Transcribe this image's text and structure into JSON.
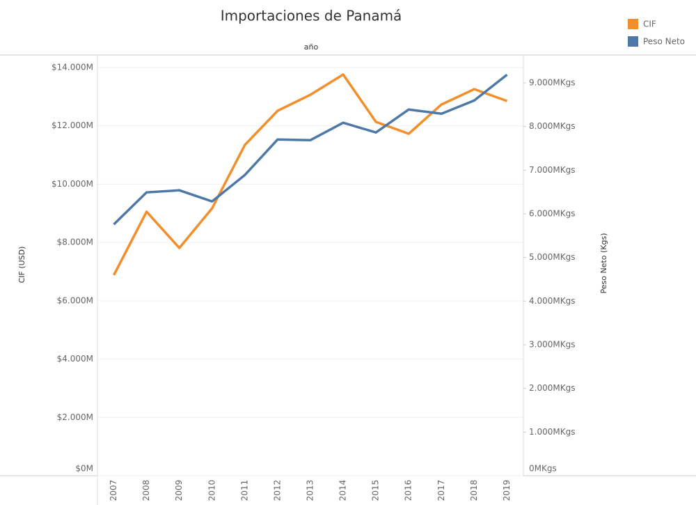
{
  "chart_data": {
    "type": "line",
    "title": "Importaciones de Panamá",
    "xlabel": "año",
    "ylabel": "CIF (USD)",
    "y2label": "Peso Neto (Kgs)",
    "categories": [
      "2007",
      "2008",
      "2009",
      "2010",
      "2011",
      "2012",
      "2013",
      "2014",
      "2015",
      "2016",
      "2017",
      "2018",
      "2019"
    ],
    "series": [
      {
        "name": "CIF",
        "color": "#f28e2b",
        "values": [
          6881,
          9055,
          7812,
          9174,
          11348,
          12519,
          13068,
          13761,
          12137,
          11730,
          12734,
          13259,
          12853
        ]
      },
      {
        "name": "Peso Neto",
        "color": "#4e79a7",
        "axis": "y2",
        "values": [
          5758,
          6491,
          6539,
          6284,
          6890,
          7703,
          7687,
          8086,
          7863,
          8389,
          8293,
          8596,
          9187
        ]
      }
    ],
    "ylim": [
      0,
      14000
    ],
    "yticks": [
      {
        "value": 0,
        "label": "$0M"
      },
      {
        "value": 2000,
        "label": "$2.000M"
      },
      {
        "value": 4000,
        "label": "$4.000M"
      },
      {
        "value": 6000,
        "label": "$6.000M"
      },
      {
        "value": 8000,
        "label": "$8.000M"
      },
      {
        "value": 10000,
        "label": "$10.000M"
      },
      {
        "value": 12000,
        "label": "$12.000M"
      },
      {
        "value": 14000,
        "label": "$14.000M"
      }
    ],
    "y2lim": [
      0,
      9350
    ],
    "y2ticks": [
      {
        "value": 0,
        "label": "0MKgs"
      },
      {
        "value": 1000,
        "label": "1.000MKgs"
      },
      {
        "value": 2000,
        "label": "2.000MKgs"
      },
      {
        "value": 3000,
        "label": "3.000MKgs"
      },
      {
        "value": 4000,
        "label": "4.000MKgs"
      },
      {
        "value": 5000,
        "label": "5.000MKgs"
      },
      {
        "value": 6000,
        "label": "6.000MKgs"
      },
      {
        "value": 7000,
        "label": "7.000MKgs"
      },
      {
        "value": 8000,
        "label": "8.000MKgs"
      },
      {
        "value": 9000,
        "label": "9.000MKgs"
      }
    ],
    "grid": true,
    "legend": "top-right"
  }
}
